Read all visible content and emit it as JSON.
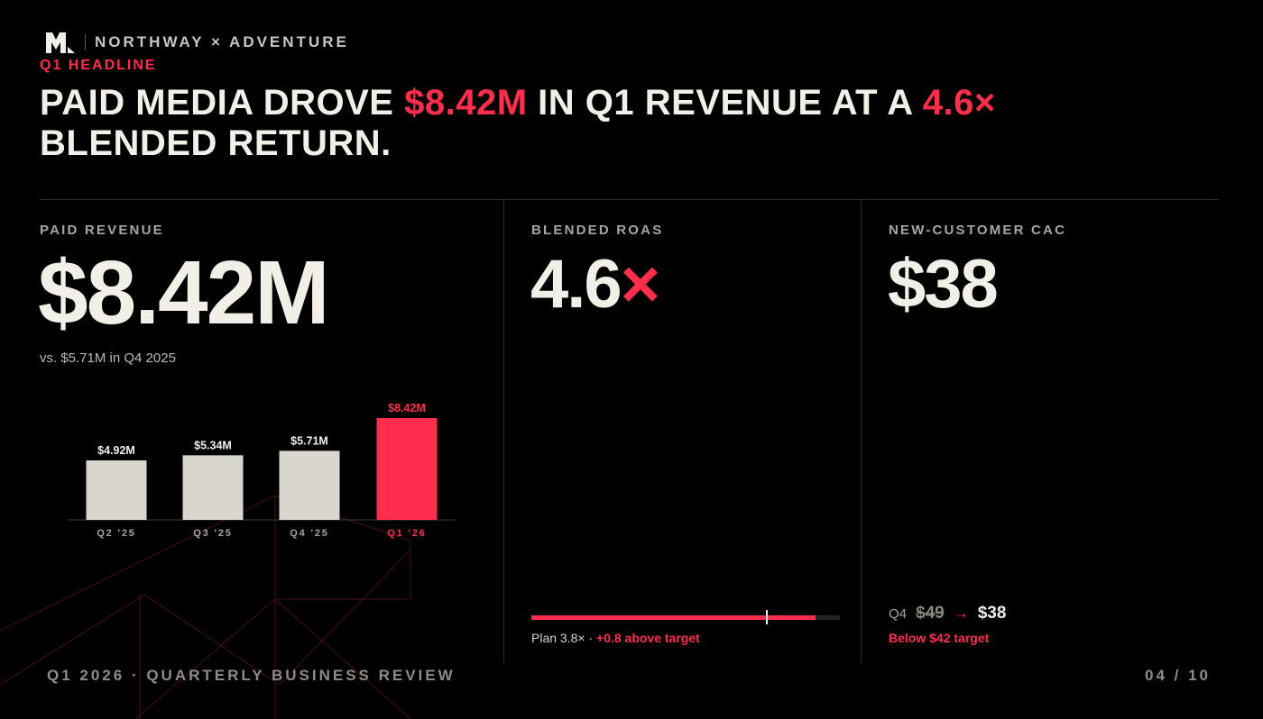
{
  "brand": {
    "name": "NORTHWAY × ADVENTURE"
  },
  "eyebrow": "Q1 HEADLINE",
  "headline": {
    "part1": "PAID MEDIA DROVE ",
    "hl1": "$8.42M",
    "part2": " IN Q1 REVENUE AT A ",
    "hl2": "4.6×",
    "part3": " BLENDED RETURN."
  },
  "kpis": {
    "revenue": {
      "label": "PAID REVENUE",
      "value": "$8.42M",
      "comparison": "vs. $5.71M in Q4 2025"
    },
    "roas": {
      "label": "BLENDED ROAS",
      "value": "4.6",
      "suffix": "×",
      "plan_label": "Plan",
      "plan_value": "3.8×",
      "separator": " · ",
      "delta": "+0.8 above target",
      "progress_fraction": 0.92,
      "target_fraction": 0.76
    },
    "cac": {
      "label": "NEW-CUSTOMER CAC",
      "value": "$38",
      "prior_label": "Q4",
      "prior_value": "$49",
      "arrow": "→",
      "current_value": "$38",
      "note": "Below $42 target"
    }
  },
  "chart_data": {
    "type": "bar",
    "categories": [
      "Q2 '25",
      "Q3 '25",
      "Q4 '25",
      "Q1 '26"
    ],
    "values": [
      4.92,
      5.34,
      5.71,
      8.42
    ],
    "value_labels": [
      "$4.92M",
      "$5.34M",
      "$5.71M",
      "$8.42M"
    ],
    "highlight_index": 3,
    "ylim": [
      0,
      8.42
    ],
    "colors": {
      "base": "#d9d6d0",
      "highlight": "#ff2e4c"
    }
  },
  "footer": {
    "left": "Q1 2026 · QUARTERLY BUSINESS REVIEW",
    "right": "04 / 10"
  },
  "colors": {
    "background": "#000000",
    "accent": "#ff2e4c",
    "text": "#f2efe9"
  }
}
